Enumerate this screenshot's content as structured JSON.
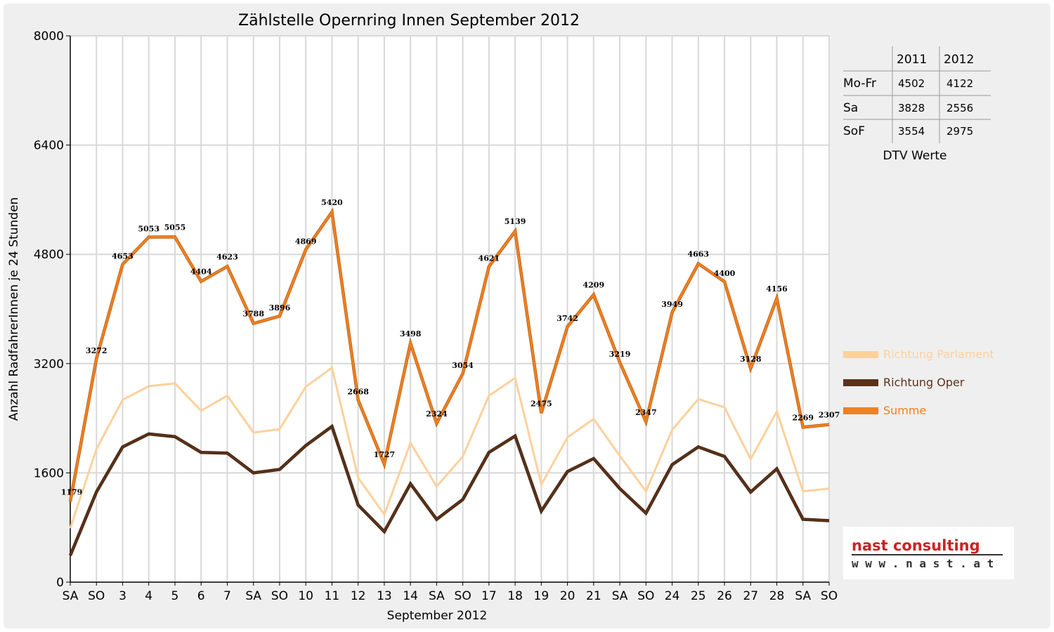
{
  "chart_data": {
    "type": "line",
    "title": "Zählstelle Opernring Innen September 2012",
    "xlabel": "September 2012",
    "ylabel": "Anzahl RadfahrerInnen je 24 Stunden",
    "ylim": [
      0,
      8000
    ],
    "yticks": [
      "0",
      "1600",
      "3200",
      "4800",
      "6400",
      "8000"
    ],
    "grid": true,
    "legend_position": "right",
    "categories": [
      "SA",
      "SO",
      "3",
      "4",
      "5",
      "6",
      "7",
      "SA",
      "SO",
      "10",
      "11",
      "12",
      "13",
      "14",
      "SA",
      "SO",
      "17",
      "18",
      "19",
      "20",
      "21",
      "SA",
      "SO",
      "24",
      "25",
      "26",
      "27",
      "28",
      "SA",
      "SO"
    ],
    "weekend_categories": [
      "SO"
    ],
    "series": [
      {
        "name": "Richtung Parlament",
        "color": "#fcd19c",
        "values": [
          790,
          1950,
          2670,
          2870,
          2910,
          2510,
          2730,
          2190,
          2240,
          2860,
          3140,
          1530,
          990,
          2040,
          1400,
          1840,
          2730,
          2990,
          1430,
          2120,
          2390,
          1850,
          1330,
          2230,
          2680,
          2560,
          1800,
          2500,
          1330,
          1370
        ]
      },
      {
        "name": "Richtung Oper",
        "color": "#5a3219",
        "values": [
          390,
          1320,
          1980,
          2170,
          2130,
          1900,
          1890,
          1600,
          1650,
          2000,
          2280,
          1130,
          740,
          1440,
          920,
          1210,
          1900,
          2140,
          1040,
          1620,
          1810,
          1370,
          1010,
          1720,
          1980,
          1840,
          1320,
          1660,
          920,
          900
        ]
      },
      {
        "name": "Summe",
        "color": "#f08020",
        "values": [
          1179,
          3272,
          4653,
          5053,
          5055,
          4404,
          4623,
          3788,
          3896,
          4869,
          5420,
          2668,
          1727,
          3498,
          2324,
          3054,
          4621,
          5139,
          2475,
          3742,
          4209,
          3219,
          2347,
          3949,
          4663,
          4400,
          3128,
          4156,
          2269,
          2307
        ]
      }
    ]
  },
  "dtv_table": {
    "caption": "DTV Werte",
    "headers": [
      "",
      "2011",
      "2012"
    ],
    "rows": [
      {
        "label": "Mo-Fr",
        "v2011": "4502",
        "v2012": "4122"
      },
      {
        "label": "Sa",
        "v2011": "3828",
        "v2012": "2556"
      },
      {
        "label": "SoF",
        "v2011": "3554",
        "v2012": "2975"
      }
    ]
  },
  "logo": {
    "name": "nast consulting",
    "url": "w w w . n a s t . a t",
    "colors": {
      "accent": "#cc2222",
      "text": "#333333"
    }
  }
}
